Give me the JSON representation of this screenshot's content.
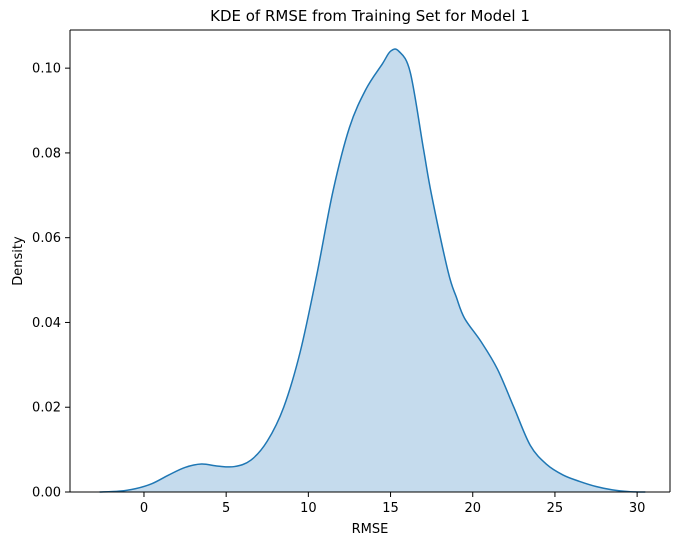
{
  "chart_data": {
    "type": "area",
    "title": "KDE of RMSE from Training Set for Model 1",
    "xlabel": "RMSE",
    "ylabel": "Density",
    "xlim": [
      -4.5,
      32.0
    ],
    "ylim": [
      0.0,
      0.109
    ],
    "x_ticks": [
      0,
      5,
      10,
      15,
      20,
      25,
      30
    ],
    "y_ticks": [
      0.0,
      0.02,
      0.04,
      0.06,
      0.08,
      0.1
    ],
    "x_tick_labels": [
      "0",
      "5",
      "10",
      "15",
      "20",
      "25",
      "30"
    ],
    "y_tick_labels": [
      "0.00",
      "0.02",
      "0.04",
      "0.06",
      "0.08",
      "0.10"
    ],
    "grid": false,
    "legend": "none",
    "colors": {
      "line": "#1f77b4",
      "fill": "#c5dbed",
      "axes": "#000000"
    },
    "series": [
      {
        "x": [
          -2.7,
          -1.5,
          -0.5,
          0.5,
          1.5,
          2.5,
          3.5,
          4.5,
          5.5,
          6.5,
          7.5,
          8.5,
          9.5,
          10.5,
          11.5,
          12.5,
          13.5,
          14.5,
          15.0,
          15.5,
          16.2,
          17.0,
          17.5,
          18.5,
          19.0,
          19.5,
          20.5,
          21.5,
          22.5,
          23.5,
          24.5,
          25.5,
          26.5,
          27.5,
          28.5,
          29.5,
          30.5
        ],
        "y": [
          0.0,
          0.0002,
          0.0008,
          0.002,
          0.004,
          0.0058,
          0.0066,
          0.0061,
          0.006,
          0.0075,
          0.012,
          0.02,
          0.033,
          0.051,
          0.071,
          0.086,
          0.095,
          0.101,
          0.104,
          0.104,
          0.099,
          0.081,
          0.07,
          0.052,
          0.046,
          0.041,
          0.0355,
          0.029,
          0.02,
          0.011,
          0.0065,
          0.004,
          0.0025,
          0.0013,
          0.0005,
          0.0001,
          0.0
        ]
      }
    ]
  }
}
